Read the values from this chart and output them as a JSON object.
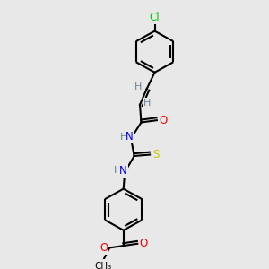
{
  "bg_color": "#e8e8e8",
  "bond_color": "#000000",
  "lw": 1.5,
  "atom_colors": {
    "H": "#708090",
    "N": "#0000ff",
    "O": "#ff0000",
    "S": "#cccc00",
    "Cl": "#00cc00"
  },
  "figsize": [
    3.0,
    3.0
  ],
  "dpi": 100,
  "xlim": [
    0,
    10
  ],
  "ylim": [
    0,
    10
  ]
}
